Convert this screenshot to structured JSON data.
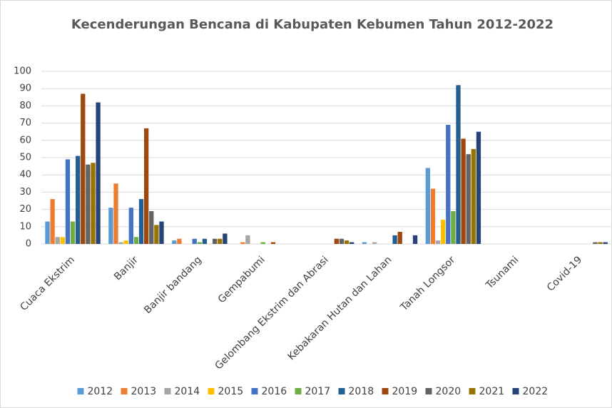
{
  "chart_data": {
    "type": "bar",
    "title": "Kecenderungan Bencana di Kabupaten Kebumen Tahun 2012-2022",
    "categories": [
      "Cuaca Ekstrim",
      "Banjir",
      "Banjir bandang",
      "Gempabumi",
      "Gelombang Ekstrim dan Abrasi",
      "Kebakaran Hutan dan Lahan",
      "Tanah Longsor",
      "Tsunami",
      "Covid-19"
    ],
    "series": [
      {
        "name": "2012",
        "color": "#5b9bd5",
        "values": [
          13,
          21,
          2,
          0,
          0,
          1,
          44,
          0,
          0
        ]
      },
      {
        "name": "2013",
        "color": "#ed7d31",
        "values": [
          26,
          35,
          3,
          1,
          0,
          0,
          32,
          0,
          0
        ]
      },
      {
        "name": "2014",
        "color": "#a5a5a5",
        "values": [
          4,
          1,
          0,
          5,
          0,
          1,
          2,
          0,
          0
        ]
      },
      {
        "name": "2015",
        "color": "#ffc000",
        "values": [
          4,
          2,
          0,
          0,
          0,
          0,
          14,
          0,
          0
        ]
      },
      {
        "name": "2016",
        "color": "#4472c4",
        "values": [
          49,
          21,
          3,
          0,
          0,
          0,
          69,
          0,
          0
        ]
      },
      {
        "name": "2017",
        "color": "#70ad47",
        "values": [
          13,
          4,
          1,
          1,
          0,
          0,
          19,
          0,
          0
        ]
      },
      {
        "name": "2018",
        "color": "#255e91",
        "values": [
          51,
          26,
          3,
          0,
          0,
          5,
          92,
          0,
          0
        ]
      },
      {
        "name": "2019",
        "color": "#9e480e",
        "values": [
          87,
          67,
          0,
          1,
          3,
          7,
          61,
          0,
          0
        ]
      },
      {
        "name": "2020",
        "color": "#636363",
        "values": [
          46,
          19,
          3,
          0,
          3,
          0,
          52,
          0,
          1
        ]
      },
      {
        "name": "2021",
        "color": "#997300",
        "values": [
          47,
          11,
          3,
          0,
          2,
          0,
          55,
          0,
          1
        ]
      },
      {
        "name": "2022",
        "color": "#264478",
        "values": [
          82,
          13,
          6,
          0,
          1,
          5,
          65,
          0,
          1
        ]
      }
    ],
    "ylim": [
      0,
      100
    ],
    "yticks": [
      0,
      10,
      20,
      30,
      40,
      50,
      60,
      70,
      80,
      90,
      100
    ],
    "grid": true,
    "legend": "bottom"
  }
}
